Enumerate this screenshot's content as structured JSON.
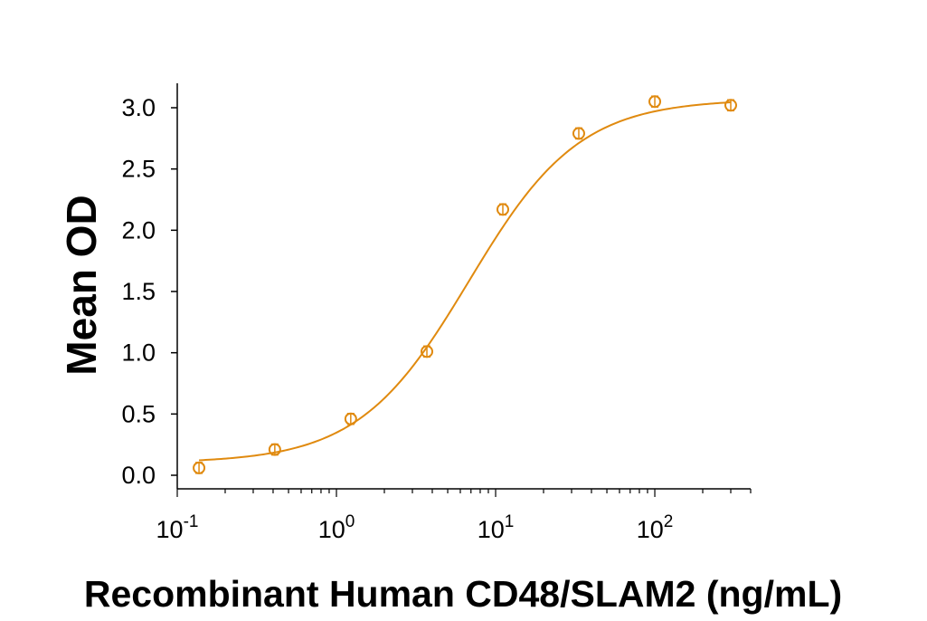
{
  "chart_data": {
    "type": "scatter",
    "title": "",
    "xlabel": "Recombinant Human CD48/SLAM2 (ng/mL)",
    "ylabel": "Mean OD",
    "x_scale": "log",
    "xlim": [
      0.1,
      400
    ],
    "ylim": [
      -0.05,
      3.2
    ],
    "x_ticks": [
      {
        "base": "10",
        "exp": "-1"
      },
      {
        "base": "10",
        "exp": "0"
      },
      {
        "base": "10",
        "exp": "1"
      },
      {
        "base": "10",
        "exp": "2"
      }
    ],
    "y_ticks": [
      "0.0",
      "0.5",
      "1.0",
      "1.5",
      "2.0",
      "2.5",
      "3.0"
    ],
    "grid": false,
    "color": "#E08A0F",
    "series": [
      {
        "x": [
          0.137,
          0.41,
          1.23,
          3.7,
          11.1,
          33.3,
          100,
          300
        ],
        "y": [
          0.06,
          0.21,
          0.46,
          1.01,
          2.17,
          2.79,
          3.05,
          3.02
        ]
      }
    ],
    "fit_curve": {
      "model": "4PL",
      "bottom": 0.1,
      "top": 3.07,
      "ec50": 6.8,
      "hill": 1.25
    }
  }
}
